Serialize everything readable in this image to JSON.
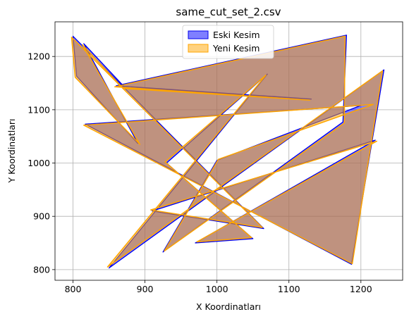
{
  "chart_data": {
    "type": "area",
    "title": "same_cut_set_2.csv",
    "xlabel": "X Koordinatları",
    "ylabel": "Y Koordinatları",
    "xlim": [
      775,
      1258
    ],
    "ylim": [
      780,
      1265
    ],
    "xticks": [
      800,
      900,
      1000,
      1100,
      1200
    ],
    "yticks": [
      800,
      900,
      1000,
      1100,
      1200
    ],
    "grid": true,
    "legend_position": "top-center",
    "series": [
      {
        "name": "Eski Kesim",
        "edge_color": "#0000ee",
        "fill_color": "#0000ff",
        "points": [
          [
            800,
            1238
          ],
          [
            805,
            1163
          ],
          [
            890,
            1037
          ],
          [
            815,
            1224
          ],
          [
            872,
            1142
          ],
          [
            1131,
            1120
          ],
          [
            860,
            1145
          ],
          [
            1180,
            1240
          ],
          [
            1175,
            1077
          ],
          [
            925,
            833
          ],
          [
            1000,
            1005
          ],
          [
            1200,
            1108
          ],
          [
            817,
            1073
          ],
          [
            1187,
            810
          ],
          [
            1232,
            1175
          ],
          [
            850,
            803
          ],
          [
            1070,
            1167
          ],
          [
            930,
            1000
          ],
          [
            1050,
            858
          ],
          [
            970,
            850
          ],
          [
            1220,
            1043
          ],
          [
            910,
            910
          ],
          [
            1065,
            877
          ],
          [
            800,
            1238
          ]
        ]
      },
      {
        "name": "Yeni Kesim",
        "edge_color": "#ffa500",
        "fill_color": "#ffa500",
        "points": [
          [
            798,
            1236
          ],
          [
            803,
            1161
          ],
          [
            893,
            1035
          ],
          [
            813,
            1222
          ],
          [
            870,
            1140
          ],
          [
            1129,
            1118
          ],
          [
            858,
            1143
          ],
          [
            1178,
            1238
          ],
          [
            1177,
            1075
          ],
          [
            927,
            835
          ],
          [
            1002,
            1007
          ],
          [
            1217,
            1110
          ],
          [
            815,
            1071
          ],
          [
            1188,
            811
          ],
          [
            1230,
            1173
          ],
          [
            848,
            805
          ],
          [
            1068,
            1165
          ],
          [
            928,
            1002
          ],
          [
            1048,
            860
          ],
          [
            972,
            852
          ],
          [
            1222,
            1041
          ],
          [
            908,
            912
          ],
          [
            1063,
            879
          ],
          [
            798,
            1236
          ]
        ]
      }
    ]
  }
}
